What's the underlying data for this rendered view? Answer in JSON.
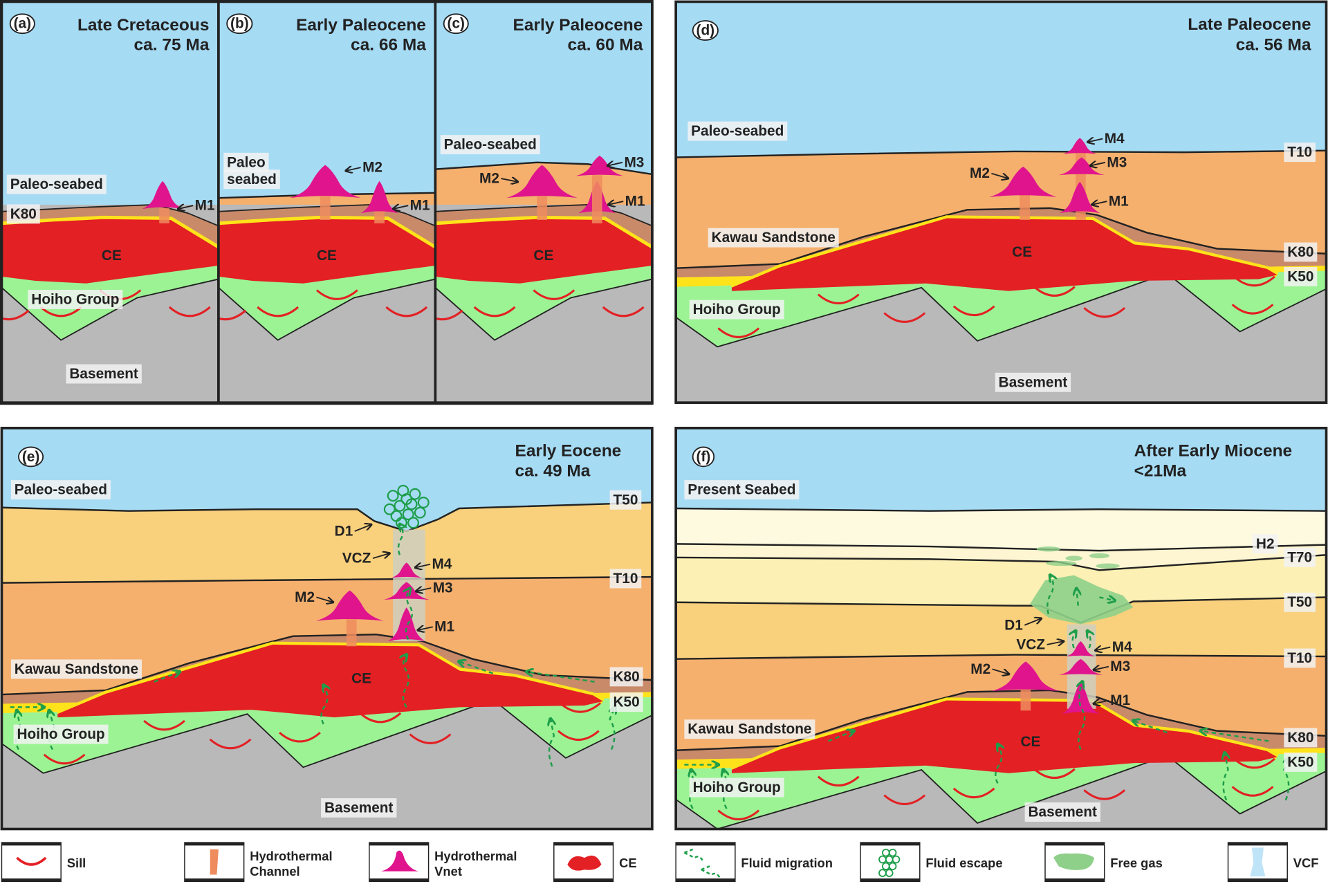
{
  "figure": {
    "panels": {
      "a": {
        "tag": "(a)",
        "period": "Late Cretaceous",
        "age": "ca. 75 Ma",
        "seabed": "Paleo-seabed",
        "k80": "K80",
        "ce": "CE",
        "hoiho": "Hoiho Group",
        "basement": "Basement",
        "m1": "M1"
      },
      "b": {
        "tag": "(b)",
        "period": "Early Paleocene",
        "age": "ca. 66 Ma",
        "seabed_1": "Paleo",
        "seabed_2": "seabed",
        "ce": "CE",
        "m2": "M2",
        "m1": "M1"
      },
      "c": {
        "tag": "(c)",
        "period": "Early Paleocene",
        "age": "ca. 60 Ma",
        "seabed": "Paleo-seabed",
        "ce": "CE",
        "m2": "M2",
        "m3": "M3",
        "m1": "M1"
      },
      "d": {
        "tag": "(d)",
        "period": "Late Paleocene",
        "age": "ca. 56 Ma",
        "seabed": "Paleo-seabed",
        "t10": "T10",
        "k80": "K80",
        "k50": "K50",
        "kawau": "Kawau Sandstone",
        "ce": "CE",
        "hoiho": "Hoiho Group",
        "basement": "Basement",
        "m4": "M4",
        "m3": "M3",
        "m1": "M1",
        "m2": "M2"
      },
      "e": {
        "tag": "(e)",
        "period": "Early Eocene",
        "age": "ca. 49 Ma",
        "seabed": "Paleo-seabed",
        "t50": "T50",
        "t10": "T10",
        "k80": "K80",
        "k50": "K50",
        "kawau": "Kawau Sandstone",
        "ce": "CE",
        "hoiho": "Hoiho Group",
        "basement": "Basement",
        "d1": "D1",
        "vcz": "VCZ",
        "m4": "M4",
        "m3": "M3",
        "m1": "M1",
        "m2": "M2"
      },
      "f": {
        "tag": "(f)",
        "period": "After Early Miocene",
        "age": "<21Ma",
        "seabed": "Present Seabed",
        "h2": "H2",
        "t70": "T70",
        "t50": "T50",
        "t10": "T10",
        "k80": "K80",
        "k50": "K50",
        "kawau": "Kawau Sandstone",
        "ce": "CE",
        "hoiho": "Hoiho Group",
        "basement": "Basement",
        "d1": "D1",
        "vcz": "VCZ",
        "m4": "M4",
        "m3": "M3",
        "m1": "M1",
        "m2": "M2"
      }
    }
  },
  "legend": [
    {
      "icon": "sill-icon",
      "label_1": "Sill",
      "label_2": ""
    },
    {
      "icon": "hydrothermal-channel-icon",
      "label_1": "Hydrothermal",
      "label_2": "Channel"
    },
    {
      "icon": "hydrothermal-vent-icon",
      "label_1": "Hydrothermal",
      "label_2": "Vnet"
    },
    {
      "icon": "ce-icon",
      "label_1": "CE",
      "label_2": ""
    },
    {
      "icon": "fluid-migration-icon",
      "label_1": "Fluid migration",
      "label_2": ""
    },
    {
      "icon": "fluid-escape-icon",
      "label_1": "Fluid escape",
      "label_2": ""
    },
    {
      "icon": "free-gas-icon",
      "label_1": "Free gas",
      "label_2": ""
    },
    {
      "icon": "vcf-icon",
      "label_1": "VCF",
      "label_2": ""
    }
  ],
  "colors": {
    "sea": "#a6dbf4",
    "orange": "#f5b06e",
    "light_orange": "#f9d07c",
    "pale_yellow": "#fdf0b4",
    "cream": "#fefae0",
    "brown": "#c98a6a",
    "yellow": "#ffe31a",
    "ce_red": "#e32024",
    "hoiho_green": "#9cf394",
    "basement_gray": "#b9b9b9",
    "vent_magenta": "#e0148c",
    "channel": "#ee8c5e",
    "fluid_green": "#1e9e4a",
    "free_gas": "#8ed08a",
    "vcz": "#cfd0c0",
    "frame": "#222222"
  }
}
